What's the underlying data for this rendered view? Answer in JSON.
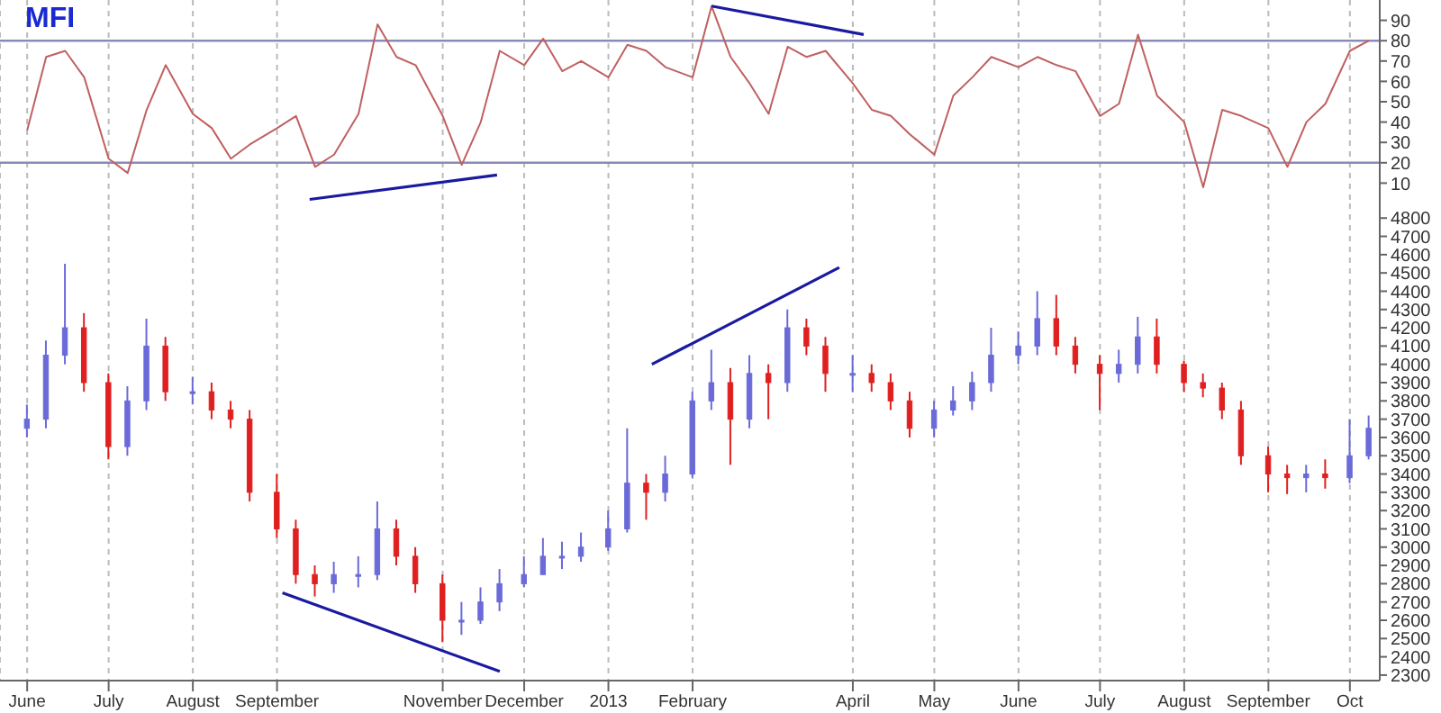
{
  "chart_data": [
    {
      "type": "line",
      "title": "MFI",
      "x": [
        "2012-06-01",
        "2012-06-08",
        "2012-06-15",
        "2012-06-22",
        "2012-07-01",
        "2012-07-08",
        "2012-07-15",
        "2012-07-22",
        "2012-08-01",
        "2012-08-08",
        "2012-08-15",
        "2012-08-22",
        "2012-09-01",
        "2012-09-08",
        "2012-09-15",
        "2012-09-22",
        "2012-10-01",
        "2012-10-08",
        "2012-10-15",
        "2012-10-22",
        "2012-11-01",
        "2012-11-08",
        "2012-11-15",
        "2012-11-22",
        "2012-12-01",
        "2012-12-08",
        "2012-12-15",
        "2012-12-22",
        "2013-01-01",
        "2013-01-08",
        "2013-01-15",
        "2013-01-22",
        "2013-02-01",
        "2013-02-08",
        "2013-02-15",
        "2013-02-22",
        "2013-03-01",
        "2013-03-08",
        "2013-03-15",
        "2013-03-22",
        "2013-04-01",
        "2013-04-08",
        "2013-04-15",
        "2013-04-22",
        "2013-05-01",
        "2013-05-08",
        "2013-05-15",
        "2013-05-22",
        "2013-06-01",
        "2013-06-08",
        "2013-06-15",
        "2013-06-22",
        "2013-07-01",
        "2013-07-08",
        "2013-07-15",
        "2013-07-22",
        "2013-08-01",
        "2013-08-08",
        "2013-08-15",
        "2013-08-22",
        "2013-09-01",
        "2013-09-08",
        "2013-09-15",
        "2013-09-22",
        "2013-10-01",
        "2013-10-08"
      ],
      "series": [
        {
          "color": "#c06060",
          "values": [
            36,
            72,
            75,
            62,
            22,
            15,
            46,
            68,
            44,
            37,
            22,
            29,
            37,
            43,
            18,
            24,
            44,
            88,
            72,
            68,
            43,
            19,
            40,
            75,
            68,
            81,
            65,
            70,
            62,
            78,
            75,
            67,
            62,
            97,
            72,
            59,
            44,
            77,
            72,
            75,
            59,
            46,
            43,
            34,
            24,
            53,
            62,
            72,
            67,
            72,
            68,
            65,
            43,
            49,
            83,
            53,
            40,
            8,
            46,
            43,
            37,
            18,
            40,
            49,
            75,
            80
          ]
        },
        {
          "type": "line",
          "color": "#1a1aa0",
          "x": [
            "2012-09-13",
            "2012-11-21"
          ],
          "values": [
            2,
            14
          ]
        },
        {
          "type": "line",
          "color": "#1a1aa0",
          "x": [
            "2013-02-08",
            "2013-04-05"
          ],
          "values": [
            97,
            83
          ]
        }
      ],
      "xlim": [
        "2012-05-22",
        "2013-10-12"
      ],
      "xticks": [
        {
          "value": "2012-06-01",
          "label": null
        },
        {
          "value": "2012-07-01",
          "label": null
        },
        {
          "value": "2012-08-01",
          "label": null
        },
        {
          "value": "2012-09-01",
          "label": null
        },
        {
          "value": "2012-11-01",
          "label": null
        },
        {
          "value": "2012-12-01",
          "label": null
        },
        {
          "value": "2013-01-01",
          "label": null
        },
        {
          "value": "2013-02-01",
          "label": null
        },
        {
          "value": "2013-04-01",
          "label": null
        },
        {
          "value": "2013-05-01",
          "label": null
        },
        {
          "value": "2013-06-01",
          "label": null
        },
        {
          "value": "2013-07-01",
          "label": null
        },
        {
          "value": "2013-08-01",
          "label": null
        },
        {
          "value": "2013-09-01",
          "label": null
        },
        {
          "value": "2013-10-01",
          "label": null
        }
      ],
      "ylim": [
        0,
        100
      ],
      "yticks": [
        10,
        20,
        30,
        40,
        50,
        60,
        70,
        80,
        90
      ],
      "ref_lines": [
        {
          "axis": "y",
          "value": 80,
          "color": "#8a8ab8"
        },
        {
          "axis": "y",
          "value": 20,
          "color": "#8a8ab8"
        }
      ],
      "grid": "x",
      "legend": false,
      "marker": "none",
      "tick_labels": "y"
    },
    {
      "type": "candlestick",
      "x": [
        "2012-06-01",
        "2012-06-08",
        "2012-06-15",
        "2012-06-22",
        "2012-07-01",
        "2012-07-08",
        "2012-07-15",
        "2012-07-22",
        "2012-08-01",
        "2012-08-08",
        "2012-08-15",
        "2012-08-22",
        "2012-09-01",
        "2012-09-08",
        "2012-09-15",
        "2012-09-22",
        "2012-10-01",
        "2012-10-08",
        "2012-10-15",
        "2012-10-22",
        "2012-11-01",
        "2012-11-08",
        "2012-11-15",
        "2012-11-22",
        "2012-12-01",
        "2012-12-08",
        "2012-12-15",
        "2012-12-22",
        "2013-01-01",
        "2013-01-08",
        "2013-01-15",
        "2013-01-22",
        "2013-02-01",
        "2013-02-08",
        "2013-02-15",
        "2013-02-22",
        "2013-03-01",
        "2013-03-08",
        "2013-03-15",
        "2013-03-22",
        "2013-04-01",
        "2013-04-08",
        "2013-04-15",
        "2013-04-22",
        "2013-05-01",
        "2013-05-08",
        "2013-05-15",
        "2013-05-22",
        "2013-06-01",
        "2013-06-08",
        "2013-06-15",
        "2013-06-22",
        "2013-07-01",
        "2013-07-08",
        "2013-07-15",
        "2013-07-22",
        "2013-08-01",
        "2013-08-08",
        "2013-08-15",
        "2013-08-22",
        "2013-09-01",
        "2013-09-08",
        "2013-09-15",
        "2013-09-22",
        "2013-10-01",
        "2013-10-08"
      ],
      "ohlc": [
        [
          3650,
          3780,
          3600,
          3700
        ],
        [
          3700,
          4130,
          3650,
          4050
        ],
        [
          4050,
          4550,
          4000,
          4200
        ],
        [
          4200,
          4280,
          3850,
          3900
        ],
        [
          3900,
          3950,
          3480,
          3550
        ],
        [
          3550,
          3880,
          3500,
          3800
        ],
        [
          3800,
          4250,
          3750,
          4100
        ],
        [
          4100,
          4150,
          3800,
          3850
        ],
        [
          3850,
          3930,
          3780,
          3850
        ],
        [
          3850,
          3900,
          3700,
          3750
        ],
        [
          3750,
          3800,
          3650,
          3700
        ],
        [
          3700,
          3750,
          3250,
          3300
        ],
        [
          3300,
          3400,
          3050,
          3100
        ],
        [
          3100,
          3150,
          2800,
          2850
        ],
        [
          2850,
          2900,
          2730,
          2800
        ],
        [
          2800,
          2920,
          2750,
          2850
        ],
        [
          2850,
          2950,
          2780,
          2850
        ],
        [
          2850,
          3250,
          2820,
          3100
        ],
        [
          3100,
          3150,
          2900,
          2950
        ],
        [
          2950,
          3000,
          2750,
          2800
        ],
        [
          2800,
          2850,
          2480,
          2600
        ],
        [
          2600,
          2700,
          2520,
          2600
        ],
        [
          2600,
          2780,
          2580,
          2700
        ],
        [
          2700,
          2880,
          2650,
          2800
        ],
        [
          2800,
          2950,
          2780,
          2850
        ],
        [
          2850,
          3050,
          2850,
          2950
        ],
        [
          2950,
          3030,
          2880,
          2950
        ],
        [
          2950,
          3080,
          2920,
          3000
        ],
        [
          3000,
          3200,
          2980,
          3100
        ],
        [
          3100,
          3650,
          3080,
          3350
        ],
        [
          3350,
          3400,
          3150,
          3300
        ],
        [
          3300,
          3500,
          3250,
          3400
        ],
        [
          3400,
          3850,
          3380,
          3800
        ],
        [
          3800,
          4080,
          3750,
          3900
        ],
        [
          3900,
          3980,
          3450,
          3700
        ],
        [
          3700,
          4050,
          3650,
          3950
        ],
        [
          3950,
          4000,
          3700,
          3900
        ],
        [
          3900,
          4300,
          3850,
          4200
        ],
        [
          4200,
          4250,
          4050,
          4100
        ],
        [
          4100,
          4150,
          3850,
          3950
        ],
        [
          3950,
          4050,
          3850,
          3950
        ],
        [
          3950,
          4000,
          3850,
          3900
        ],
        [
          3900,
          3950,
          3750,
          3800
        ],
        [
          3800,
          3850,
          3600,
          3650
        ],
        [
          3650,
          3800,
          3600,
          3750
        ],
        [
          3750,
          3880,
          3720,
          3800
        ],
        [
          3800,
          3960,
          3750,
          3900
        ],
        [
          3900,
          4200,
          3850,
          4050
        ],
        [
          4050,
          4180,
          4000,
          4100
        ],
        [
          4100,
          4400,
          4050,
          4250
        ],
        [
          4250,
          4380,
          4050,
          4100
        ],
        [
          4100,
          4150,
          3950,
          4000
        ],
        [
          4000,
          4050,
          3750,
          3950
        ],
        [
          3950,
          4080,
          3900,
          4000
        ],
        [
          4000,
          4260,
          3950,
          4150
        ],
        [
          4150,
          4250,
          3950,
          4000
        ],
        [
          4000,
          4020,
          3850,
          3900
        ],
        [
          3900,
          3950,
          3820,
          3870
        ],
        [
          3870,
          3900,
          3700,
          3750
        ],
        [
          3750,
          3800,
          3450,
          3500
        ],
        [
          3500,
          3550,
          3300,
          3400
        ],
        [
          3400,
          3450,
          3290,
          3380
        ],
        [
          3380,
          3450,
          3300,
          3400
        ],
        [
          3400,
          3480,
          3320,
          3380
        ],
        [
          3380,
          3700,
          3350,
          3500
        ],
        [
          3500,
          3720,
          3480,
          3650
        ]
      ],
      "colors": [
        "#6a6ad8",
        "#6a6ad8",
        "#6a6ad8",
        "#e02020",
        "#e02020",
        "#6a6ad8",
        "#6a6ad8",
        "#e02020",
        "#6a6ad8",
        "#e02020",
        "#e02020",
        "#e02020",
        "#e02020",
        "#e02020",
        "#e02020",
        "#6a6ad8",
        "#6a6ad8",
        "#6a6ad8",
        "#e02020",
        "#e02020",
        "#e02020",
        "#6a6ad8",
        "#6a6ad8",
        "#6a6ad8",
        "#6a6ad8",
        "#6a6ad8",
        "#6a6ad8",
        "#6a6ad8",
        "#6a6ad8",
        "#6a6ad8",
        "#e02020",
        "#6a6ad8",
        "#6a6ad8",
        "#6a6ad8",
        "#e02020",
        "#6a6ad8",
        "#e02020",
        "#6a6ad8",
        "#e02020",
        "#e02020",
        "#6a6ad8",
        "#e02020",
        "#e02020",
        "#e02020",
        "#6a6ad8",
        "#6a6ad8",
        "#6a6ad8",
        "#6a6ad8",
        "#6a6ad8",
        "#6a6ad8",
        "#e02020",
        "#e02020",
        "#e02020",
        "#6a6ad8",
        "#6a6ad8",
        "#e02020",
        "#e02020",
        "#e02020",
        "#e02020",
        "#e02020",
        "#e02020",
        "#e02020",
        "#6a6ad8",
        "#e02020",
        "#6a6ad8",
        "#6a6ad8"
      ],
      "series": [
        {
          "type": "line",
          "color": "#1a1aa0",
          "x": [
            "2012-09-03",
            "2012-11-22"
          ],
          "values": [
            2750,
            2320
          ]
        },
        {
          "type": "line",
          "color": "#1a1aa0",
          "x": [
            "2013-01-17",
            "2013-03-27"
          ],
          "values": [
            4000,
            4530
          ]
        }
      ],
      "xlim": [
        "2012-05-22",
        "2013-10-12"
      ],
      "xticks": [
        {
          "value": "2012-06-01",
          "label": "June"
        },
        {
          "value": "2012-07-01",
          "label": "July"
        },
        {
          "value": "2012-08-01",
          "label": "August"
        },
        {
          "value": "2012-09-01",
          "label": "September"
        },
        {
          "value": "2012-11-01",
          "label": "November"
        },
        {
          "value": "2012-12-01",
          "label": "December"
        },
        {
          "value": "2013-01-01",
          "label": "2013"
        },
        {
          "value": "2013-02-01",
          "label": "February"
        },
        {
          "value": "2013-04-01",
          "label": "April"
        },
        {
          "value": "2013-05-01",
          "label": "May"
        },
        {
          "value": "2013-06-01",
          "label": "June"
        },
        {
          "value": "2013-07-01",
          "label": "July"
        },
        {
          "value": "2013-08-01",
          "label": "August"
        },
        {
          "value": "2013-09-01",
          "label": "September"
        },
        {
          "value": "2013-10-01",
          "label": "Oct"
        }
      ],
      "ylim": [
        2270,
        4880
      ],
      "yticks": [
        2300,
        2400,
        2500,
        2600,
        2700,
        2800,
        2900,
        3000,
        3100,
        3200,
        3300,
        3400,
        3500,
        3600,
        3700,
        3800,
        3900,
        4000,
        4100,
        4200,
        4300,
        4400,
        4500,
        4600,
        4700,
        4800
      ],
      "grid": "x",
      "legend": false
    }
  ]
}
